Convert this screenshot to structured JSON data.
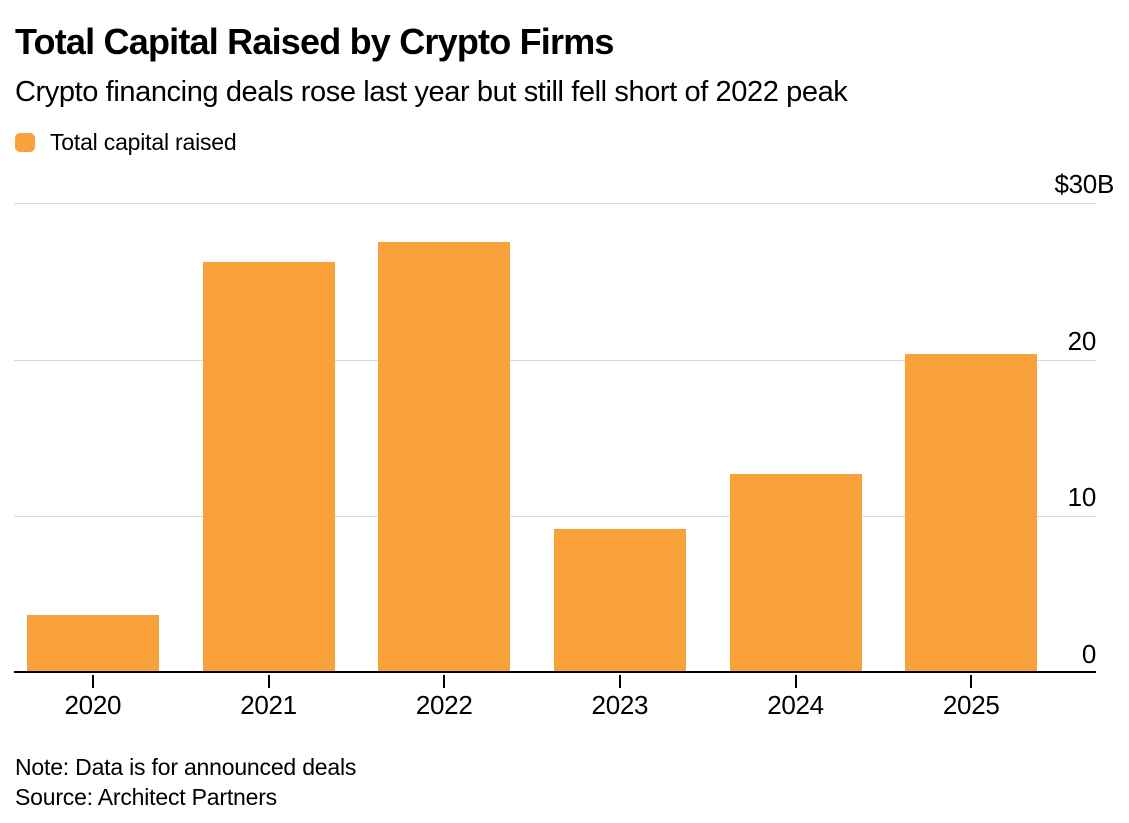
{
  "header": {
    "title": "Total Capital Raised by Crypto Firms",
    "subtitle": "Crypto financing deals rose last year but still fell short of 2022 peak"
  },
  "legend": {
    "label": "Total capital raised",
    "swatch_color": "#F9A23C"
  },
  "footer": {
    "note": "Note: Data is for announced deals",
    "source": "Source: Architect Partners"
  },
  "colors": {
    "bar": "#F9A23C",
    "gridline": "#D9D9D9",
    "axis": "#000000",
    "text": "#000000"
  },
  "chart_data": {
    "type": "bar",
    "title": "Total Capital Raised by Crypto Firms",
    "subtitle": "Crypto financing deals rose last year but still fell short of 2022 peak",
    "categories": [
      "2020",
      "2021",
      "2022",
      "2023",
      "2024",
      "2025"
    ],
    "series": [
      {
        "name": "Total capital raised",
        "values": [
          3.6,
          26.2,
          27.5,
          9.1,
          12.6,
          20.3
        ]
      }
    ],
    "unit": "USD billions",
    "xlabel": "",
    "ylabel": "",
    "ylim": [
      0,
      30
    ],
    "yticks": [
      {
        "label": "$30B",
        "value": 30
      },
      {
        "label": "20",
        "value": 20
      },
      {
        "label": "10",
        "value": 10
      },
      {
        "label": "0",
        "value": 0
      }
    ],
    "grid": true,
    "legend_position": "top-left",
    "note": "Note: Data is for announced deals",
    "source": "Source: Architect Partners"
  }
}
